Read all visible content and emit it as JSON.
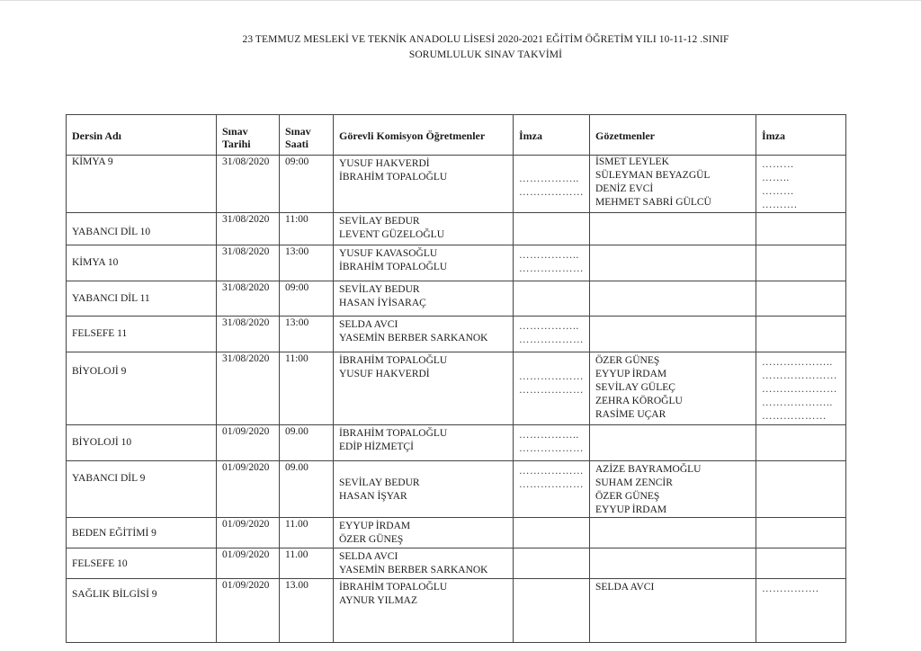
{
  "title_line1": "23 TEMMUZ MESLEKİ VE TEKNİK ANADOLU LİSESİ 2020-2021 EĞİTİM ÖĞRETİM YILI 10-11-12 .SINIF",
  "title_line2": "SORUMLULUK SINAV TAKVİMİ",
  "headers": {
    "course": "Dersin Adı",
    "date": [
      "Sınav",
      "Tarihi"
    ],
    "time": [
      "Sınav",
      "Saati"
    ],
    "committee": "Görevli  Komisyon Öğretmenler",
    "committee_sign": "İmza",
    "proctors": "Gözetmenler",
    "proctor_sign": "İmza"
  },
  "rows": [
    {
      "course": "KİMYA 9",
      "date": "31/08/2020",
      "time": "09:00",
      "committee": [
        "YUSUF HAKVERDİ",
        "İBRAHİM TOPALOĞLU"
      ],
      "committee_sign": [
        "……………..",
        "………………"
      ],
      "proctors": [
        "İSMET LEYLEK",
        "SÜLEYMAN BEYAZGÜL",
        "DENİZ EVCİ",
        "MEHMET SABRİ GÜLCÜ"
      ],
      "proctor_sign": [
        "………",
        "……..",
        "………",
        "………."
      ]
    },
    {
      "course": "YABANCI DİL 10",
      "date": "31/08/2020",
      "time": "11:00",
      "committee": [
        "SEVİLAY BEDUR",
        "LEVENT GÜZELOĞLU"
      ],
      "committee_sign": [],
      "proctors": [],
      "proctor_sign": []
    },
    {
      "course": "KİMYA 10",
      "date": "31/08/2020",
      "time": "13:00",
      "committee": [
        "YUSUF KAVASOĞLU",
        "İBRAHİM TOPALOĞLU"
      ],
      "committee_sign": [
        "……………..",
        "………………"
      ],
      "proctors": [],
      "proctor_sign": []
    },
    {
      "course": "YABANCI DİL 11",
      "date": "31/08/2020",
      "time": "09:00",
      "committee": [
        "SEVİLAY BEDUR",
        "HASAN İYİSARAÇ"
      ],
      "committee_sign": [],
      "proctors": [],
      "proctor_sign": []
    },
    {
      "course": "FELSEFE 11",
      "date": "31/08/2020",
      "time": "13:00",
      "committee": [
        "SELDA AVCI",
        "YASEMİN BERBER SARKANOK"
      ],
      "committee_sign": [
        "……………..",
        "………………"
      ],
      "proctors": [],
      "proctor_sign": []
    },
    {
      "course": "BİYOLOJİ 9",
      "date": "31/08/2020",
      "time": "11:00",
      "committee": [
        "İBRAHİM TOPALOĞLU",
        "YUSUF HAKVERDİ"
      ],
      "committee_sign": [
        "………………",
        "………………"
      ],
      "proctors": [
        "ÖZER GÜNEŞ",
        "EYYUP İRDAM",
        "SEVİLAY GÜLEÇ",
        "ZEHRA KÖROĞLU",
        "RASİME UÇAR"
      ],
      "proctor_sign": [
        "………………..",
        "…………………",
        "…………………",
        "………………..",
        "………………"
      ]
    },
    {
      "course": "BİYOLOJİ 10",
      "date": "01/09/2020",
      "time": "09.00",
      "committee": [
        "İBRAHİM TOPALOĞLU",
        "EDİP HİZMETÇİ"
      ],
      "committee_sign": [
        "……………..",
        "………………"
      ],
      "proctors": [],
      "proctor_sign": []
    },
    {
      "course": "YABANCI DİL 9",
      "date": "01/09/2020",
      "time": "09.00",
      "committee": [
        "SEVİLAY BEDUR",
        "HASAN İŞYAR"
      ],
      "committee_sign": [
        "………………",
        "………………"
      ],
      "proctors": [
        "AZİZE BAYRAMOĞLU",
        "SUHAM ZENCİR",
        "ÖZER GÜNEŞ",
        "EYYUP İRDAM"
      ],
      "proctor_sign": []
    },
    {
      "course": "BEDEN EĞİTİMİ 9",
      "date": "01/09/2020",
      "time": "11.00",
      "committee": [
        "EYYUP İRDAM",
        "ÖZER GÜNEŞ"
      ],
      "committee_sign": [],
      "proctors": [],
      "proctor_sign": []
    },
    {
      "course": "FELSEFE 10",
      "date": "01/09/2020",
      "time": "11.00",
      "committee": [
        "SELDA AVCI",
        "YASEMİN BERBER SARKANOK"
      ],
      "committee_sign": [],
      "proctors": [],
      "proctor_sign": []
    },
    {
      "course": "SAĞLIK BİLGİSİ 9",
      "date": "01/09/2020",
      "time": "13.00",
      "committee": [
        "İBRAHİM TOPALOĞLU",
        "AYNUR YILMAZ"
      ],
      "committee_sign": [],
      "proctors": [
        "SELDA AVCI"
      ],
      "proctor_sign": [
        "……………."
      ]
    }
  ]
}
